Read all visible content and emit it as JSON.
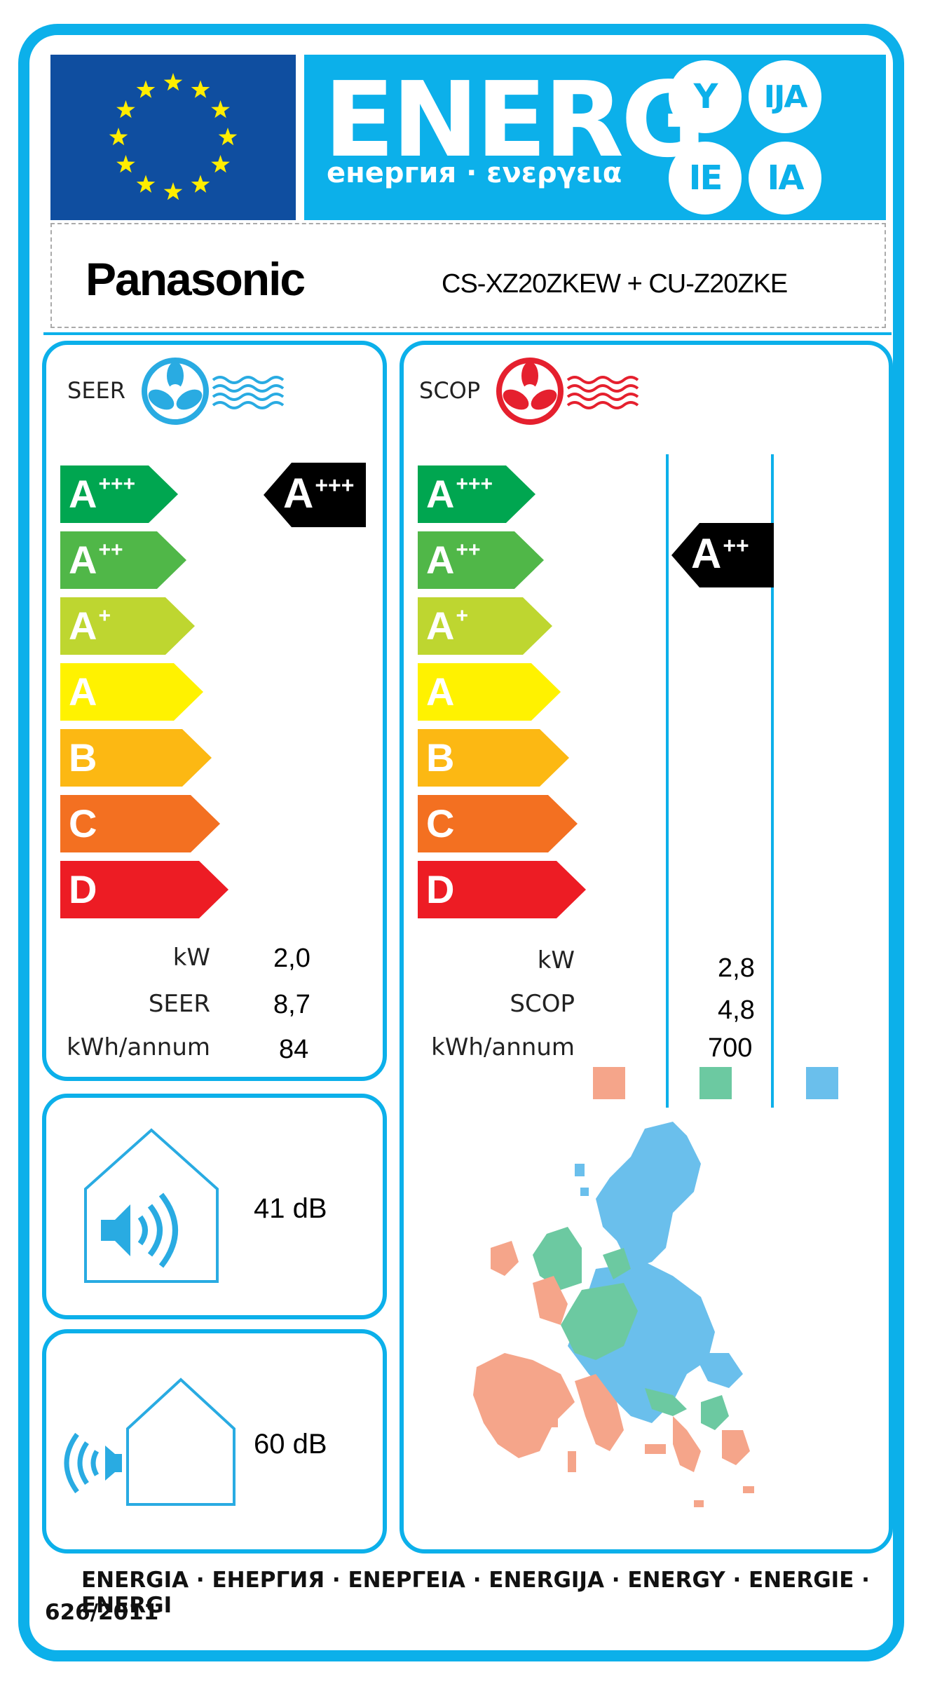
{
  "header": {
    "energy_word": "ENERG",
    "energy_sub": "енергия · ενεργεια",
    "suffixes": [
      "Y",
      "IJA",
      "IE",
      "IA"
    ]
  },
  "supplier": {
    "brand": "Panasonic",
    "model": "CS-XZ20ZKEW + CU-Z20ZKE"
  },
  "cooling": {
    "label": "SEER",
    "scale": [
      {
        "letter": "A",
        "sup": "+++",
        "color": "#00a650"
      },
      {
        "letter": "A",
        "sup": "++",
        "color": "#50b748"
      },
      {
        "letter": "A",
        "sup": "+",
        "color": "#bed630"
      },
      {
        "letter": "A",
        "sup": "",
        "color": "#fff200"
      },
      {
        "letter": "B",
        "sup": "",
        "color": "#fcb813"
      },
      {
        "letter": "C",
        "sup": "",
        "color": "#f37021"
      },
      {
        "letter": "D",
        "sup": "",
        "color": "#ed1c24"
      }
    ],
    "rating": {
      "letter": "A",
      "sup": "+++"
    },
    "rows": [
      {
        "label": "kW",
        "value": "2,0"
      },
      {
        "label": "SEER",
        "value": "8,7"
      },
      {
        "label": "kWh/annum",
        "value": "84"
      }
    ]
  },
  "heating": {
    "label": "SCOP",
    "scale": [
      {
        "letter": "A",
        "sup": "+++",
        "color": "#00a650"
      },
      {
        "letter": "A",
        "sup": "++",
        "color": "#50b748"
      },
      {
        "letter": "A",
        "sup": "+",
        "color": "#bed630"
      },
      {
        "letter": "A",
        "sup": "",
        "color": "#fff200"
      },
      {
        "letter": "B",
        "sup": "",
        "color": "#fcb813"
      },
      {
        "letter": "C",
        "sup": "",
        "color": "#f37021"
      },
      {
        "letter": "D",
        "sup": "",
        "color": "#ed1c24"
      }
    ],
    "rating": {
      "letter": "A",
      "sup": "++"
    },
    "rows": [
      {
        "label": "kW",
        "value": "2,8"
      },
      {
        "label": "SCOP",
        "value": "4,8"
      },
      {
        "label": "kWh/annum",
        "value": "700"
      }
    ],
    "zone_colors": [
      "#f5a58a",
      "#6cc9a1",
      "#6abfec"
    ]
  },
  "noise": {
    "indoor": "41 dB",
    "outdoor": "60 dB"
  },
  "footer": {
    "languages": "ENERGIA · ЕНЕРГИЯ · ΕΝΕΡΓΕΙΑ · ENERGIJA · ENERGY · ENERGIE · ENERGI",
    "regulation": "626/2011"
  },
  "colors": {
    "frame_blue": "#0cb0ea",
    "eu_blue": "#0f4ea0",
    "eu_star": "#ffed00",
    "cool_icon": "#29abe2",
    "heat_icon": "#e5202e"
  }
}
